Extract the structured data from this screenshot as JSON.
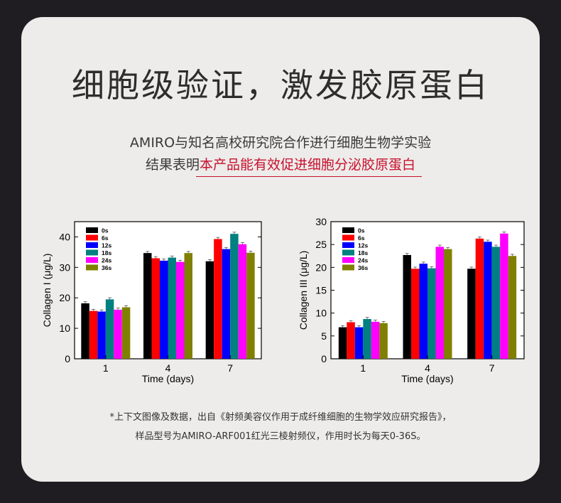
{
  "page": {
    "title": "细胞级验证，激发胶原蛋白",
    "subtitle_line1": "AMIRO与知名高校研究院合作进行细胞生物学实验",
    "subtitle_line2_prefix": "结果表明",
    "subtitle_line2_highlight": "本产品能有效促进细胞分泌胶原蛋白",
    "footnote_line1": "*上下文图像及数据，出自《射频美容仪作用于成纤维细胞的生物学效应研究报告》，",
    "footnote_line2": "样品型号为AMIRO-ARF001红光三棱射频仪，作用时长为每天0-36S。"
  },
  "chart_data": [
    {
      "type": "bar",
      "ylabel": "Collagen I (μg/L)",
      "xlabel": "Time (days)",
      "categories": [
        "1",
        "4",
        "7"
      ],
      "ylim": [
        0,
        45
      ],
      "yticks": [
        0,
        10,
        20,
        30,
        40
      ],
      "legend_position": "top-left",
      "series": [
        {
          "name": "0s",
          "color": "#000000",
          "values": [
            18.2,
            34.7,
            32.0
          ]
        },
        {
          "name": "6s",
          "color": "#ff0000",
          "values": [
            15.7,
            33.0,
            39.3
          ]
        },
        {
          "name": "12s",
          "color": "#0000ff",
          "values": [
            15.5,
            32.2,
            36.0
          ]
        },
        {
          "name": "18s",
          "color": "#008080",
          "values": [
            19.5,
            33.2,
            41.0
          ]
        },
        {
          "name": "24s",
          "color": "#ff00ff",
          "values": [
            16.1,
            31.8,
            37.6
          ]
        },
        {
          "name": "36s",
          "color": "#808000",
          "values": [
            16.9,
            34.7,
            34.8
          ]
        }
      ]
    },
    {
      "type": "bar",
      "ylabel": "Collagen III (μg/L)",
      "xlabel": "Time (days)",
      "categories": [
        "1",
        "4",
        "7"
      ],
      "ylim": [
        0,
        30
      ],
      "yticks": [
        0,
        5,
        10,
        15,
        20,
        25,
        30
      ],
      "legend_position": "top-left",
      "series": [
        {
          "name": "0s",
          "color": "#000000",
          "values": [
            6.9,
            22.7,
            19.7
          ]
        },
        {
          "name": "6s",
          "color": "#ff0000",
          "values": [
            8.0,
            19.7,
            26.3
          ]
        },
        {
          "name": "12s",
          "color": "#0000ff",
          "values": [
            6.9,
            20.8,
            25.6
          ]
        },
        {
          "name": "18s",
          "color": "#008080",
          "values": [
            8.7,
            19.8,
            24.5
          ]
        },
        {
          "name": "24s",
          "color": "#ff00ff",
          "values": [
            8.1,
            24.5,
            27.4
          ]
        },
        {
          "name": "36s",
          "color": "#808000",
          "values": [
            7.8,
            24.0,
            22.5
          ]
        }
      ]
    }
  ]
}
